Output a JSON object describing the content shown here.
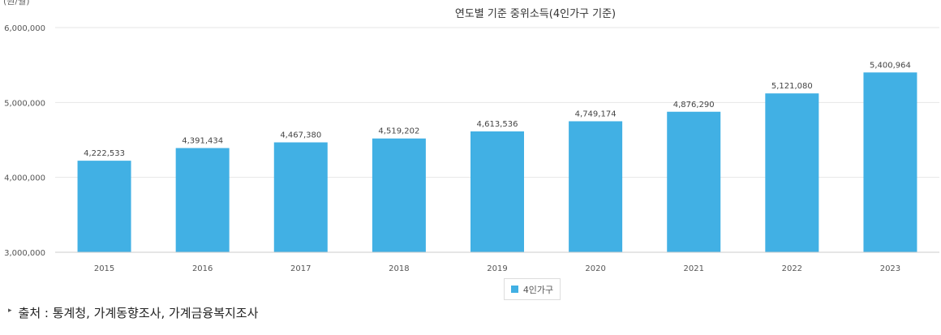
{
  "chart_data": {
    "type": "bar",
    "title": "연도별 기준 중위소득(4인가구 기준)",
    "unit_label": "(원/월)",
    "categories": [
      "2015",
      "2016",
      "2017",
      "2018",
      "2019",
      "2020",
      "2021",
      "2022",
      "2023"
    ],
    "series": [
      {
        "name": "4인가구",
        "values": [
          4222533,
          4391434,
          4467380,
          4519202,
          4613536,
          4749174,
          4876290,
          5121080,
          5400964
        ],
        "value_labels": [
          "4,222,533",
          "4,391,434",
          "4,467,380",
          "4,519,202",
          "4,613,536",
          "4,749,174",
          "4,876,290",
          "5,121,080",
          "5,400,964"
        ],
        "color": "#41b0e4"
      }
    ],
    "ylim": [
      3000000,
      6000000
    ],
    "yticks": [
      3000000,
      4000000,
      5000000,
      6000000
    ],
    "ytick_labels": [
      "3,000,000",
      "4,000,000",
      "5,000,000",
      "6,000,000"
    ],
    "xlabel": "",
    "ylabel": "",
    "grid": true,
    "legend_position": "bottom-center"
  },
  "source": {
    "text": "출처 : 통계청, 가계동향조사, 가계금융복지조사",
    "bullet": "▸"
  },
  "colors": {
    "bar": "#41b0e4",
    "grid": "#e6e6e6",
    "axis": "#cccccc"
  }
}
